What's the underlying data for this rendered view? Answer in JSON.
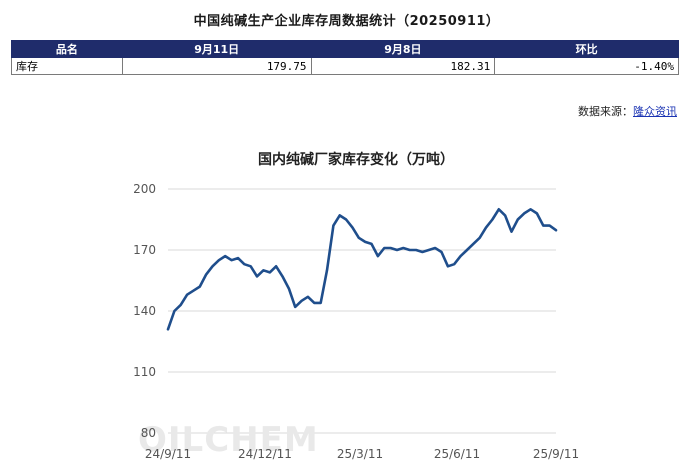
{
  "report": {
    "title": "中国纯碱生产企业库存周数据统计（20250911）",
    "table": {
      "headers": [
        "品名",
        "9月11日",
        "9月8日",
        "环比"
      ],
      "rows": [
        {
          "name": "库存",
          "current": "179.75",
          "previous": "182.31",
          "change": "-1.40%"
        }
      ]
    },
    "source_label": "数据来源：",
    "source_link": "隆众资讯"
  },
  "watermark": "OILCHEM",
  "chart_data": {
    "type": "line",
    "title": "国内纯碱厂家库存变化（万吨）",
    "xlabel": "",
    "ylabel": "",
    "ylim": [
      80,
      200
    ],
    "yticks": [
      80,
      110,
      140,
      170,
      200
    ],
    "grid": true,
    "xtick_labels": [
      "24/9/11",
      "24/12/11",
      "25/3/11",
      "25/6/11",
      "25/9/11"
    ],
    "series": [
      {
        "color": "#1f4e8c",
        "values": [
          131,
          140,
          143,
          148,
          150,
          152,
          158,
          162,
          165,
          167,
          165,
          166,
          163,
          162,
          157,
          160,
          159,
          162,
          157,
          151,
          142,
          145,
          147,
          144,
          144,
          160,
          182,
          187,
          185,
          181,
          176,
          174,
          173,
          167,
          171,
          171,
          170,
          171,
          170,
          170,
          169,
          170,
          171,
          169,
          162,
          163,
          167,
          170,
          173,
          176,
          181,
          185,
          190,
          187,
          179,
          185,
          188,
          190,
          188,
          182,
          182,
          179.75
        ]
      }
    ]
  }
}
